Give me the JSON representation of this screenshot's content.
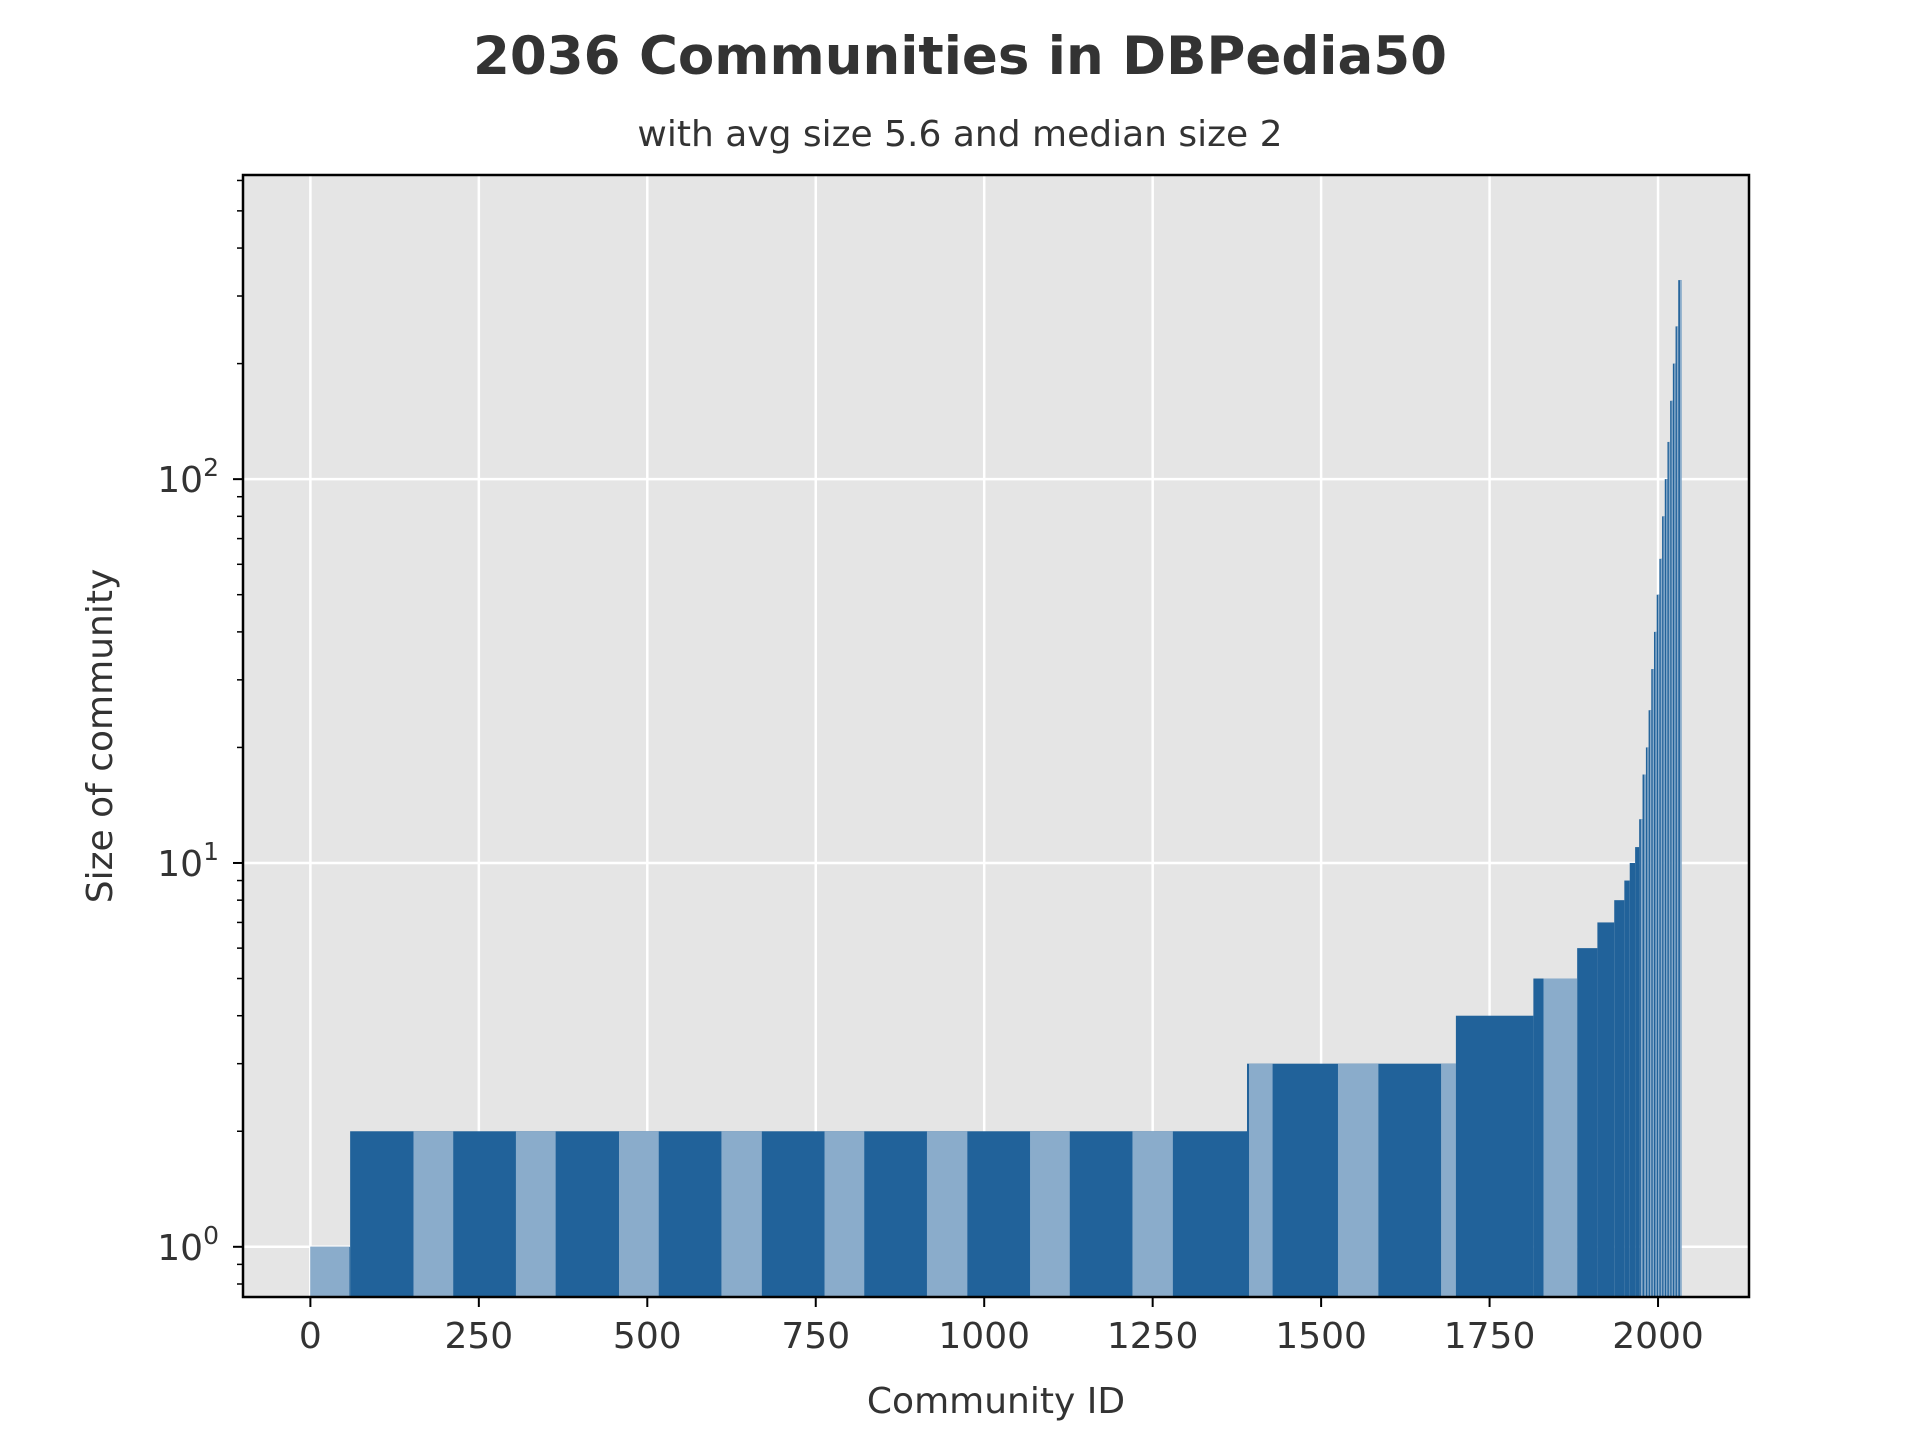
{
  "chart_data": {
    "type": "bar",
    "title": "2036 Communities in DBPedia50",
    "subtitle": "with avg size 5.6 and median size 2",
    "xlabel": "Community ID",
    "ylabel": "Size of community",
    "xlim": [
      -100,
      2135
    ],
    "ylim": [
      0.74,
      620
    ],
    "yscale": "log",
    "grid": true,
    "x_ticks": [
      {
        "value": 0,
        "label": "0"
      },
      {
        "value": 250,
        "label": "250"
      },
      {
        "value": 500,
        "label": "500"
      },
      {
        "value": 750,
        "label": "750"
      },
      {
        "value": 1000,
        "label": "1000"
      },
      {
        "value": 1250,
        "label": "1250"
      },
      {
        "value": 1500,
        "label": "1500"
      },
      {
        "value": 1750,
        "label": "1750"
      },
      {
        "value": 2000,
        "label": "2000"
      }
    ],
    "y_ticks": [
      {
        "value": 1,
        "base": "10",
        "exp": "0"
      },
      {
        "value": 10,
        "base": "10",
        "exp": "1"
      },
      {
        "value": 100,
        "base": "10",
        "exp": "2"
      }
    ],
    "colors": {
      "bar": "#21629a",
      "bar_light": "#8aaccb",
      "background": "#e5e5e5",
      "grid": "#ffffff",
      "text": "#333333"
    },
    "segments": [
      {
        "x_start": 0,
        "x_end": 59,
        "value": 1
      },
      {
        "x_start": 59,
        "x_end": 1390,
        "value": 2
      },
      {
        "x_start": 1390,
        "x_end": 1700,
        "value": 3
      },
      {
        "x_start": 1700,
        "x_end": 1815,
        "value": 4
      },
      {
        "x_start": 1815,
        "x_end": 1880,
        "value": 5
      },
      {
        "x_start": 1880,
        "x_end": 1910,
        "value": 6
      },
      {
        "x_start": 1910,
        "x_end": 1935,
        "value": 7
      },
      {
        "x_start": 1935,
        "x_end": 1950,
        "value": 8
      },
      {
        "x_start": 1950,
        "x_end": 1958,
        "value": 9
      },
      {
        "x_start": 1958,
        "x_end": 1966,
        "value": 10
      },
      {
        "x_start": 1966,
        "x_end": 1972,
        "value": 11
      },
      {
        "x_start": 1972,
        "x_end": 1977,
        "value": 13
      },
      {
        "x_start": 1977,
        "x_end": 1982,
        "value": 17
      },
      {
        "x_start": 1982,
        "x_end": 1986,
        "value": 20
      },
      {
        "x_start": 1986,
        "x_end": 1990,
        "value": 25
      },
      {
        "x_start": 1990,
        "x_end": 1994,
        "value": 32
      },
      {
        "x_start": 1994,
        "x_end": 1998,
        "value": 40
      },
      {
        "x_start": 1998,
        "x_end": 2002,
        "value": 50
      },
      {
        "x_start": 2002,
        "x_end": 2006,
        "value": 62
      },
      {
        "x_start": 2006,
        "x_end": 2010,
        "value": 80
      },
      {
        "x_start": 2010,
        "x_end": 2014,
        "value": 100
      },
      {
        "x_start": 2014,
        "x_end": 2018,
        "value": 125
      },
      {
        "x_start": 2018,
        "x_end": 2022,
        "value": 160
      },
      {
        "x_start": 2022,
        "x_end": 2026,
        "value": 200
      },
      {
        "x_start": 2026,
        "x_end": 2030,
        "value": 250
      },
      {
        "x_start": 2030,
        "x_end": 2035,
        "value": 330
      }
    ]
  }
}
